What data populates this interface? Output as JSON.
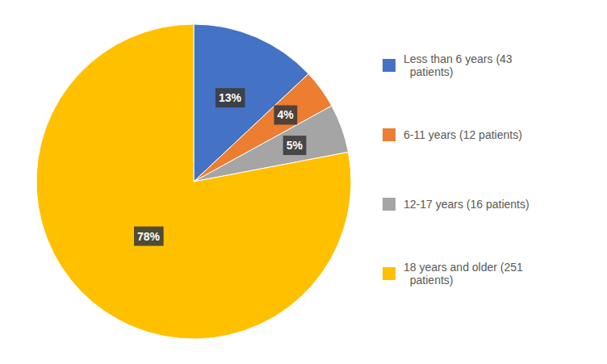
{
  "chart_data": {
    "type": "pie",
    "categories": [
      "Less than 6 years (43\n  patients)",
      "6-11 years (12 patients)",
      "12-17 years (16 patients)",
      "18 years and older (251\n  patients)"
    ],
    "values": [
      13,
      4,
      5,
      78
    ],
    "value_labels": [
      "13%",
      "4%",
      "5%",
      "78%"
    ],
    "colors": [
      "#4472C4",
      "#ED7D31",
      "#A5A5A5",
      "#FFC000"
    ],
    "data_labels": true,
    "legend": "right"
  }
}
